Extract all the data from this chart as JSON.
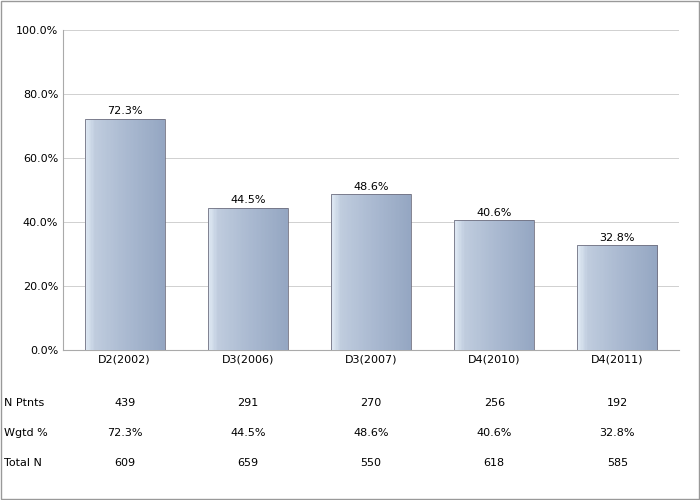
{
  "categories": [
    "D2(2002)",
    "D3(2006)",
    "D3(2007)",
    "D4(2010)",
    "D4(2011)"
  ],
  "values": [
    72.3,
    44.5,
    48.6,
    40.6,
    32.8
  ],
  "n_ptnts": [
    439,
    291,
    270,
    256,
    192
  ],
  "wgtd_pct": [
    "72.3%",
    "44.5%",
    "48.6%",
    "40.6%",
    "32.8%"
  ],
  "total_n": [
    609,
    659,
    550,
    618,
    585
  ],
  "ylim": [
    0,
    100
  ],
  "yticks": [
    0,
    20,
    40,
    60,
    80,
    100
  ],
  "ytick_labels": [
    "0.0%",
    "20.0%",
    "40.0%",
    "60.0%",
    "80.0%",
    "100.0%"
  ],
  "background_color": "#ffffff",
  "grid_color": "#d0d0d0",
  "bar_width": 0.65,
  "bar_colors": [
    "#c8d4e0",
    "#b0c0d4",
    "#98aac0",
    "#8898b0"
  ],
  "bar_edge_color": "#707080",
  "label_fontsize": 8,
  "value_fontsize": 8,
  "table_fontsize": 8,
  "table_labels": [
    "N Ptnts",
    "Wgtd %",
    "Total N"
  ],
  "border_color": "#999999"
}
